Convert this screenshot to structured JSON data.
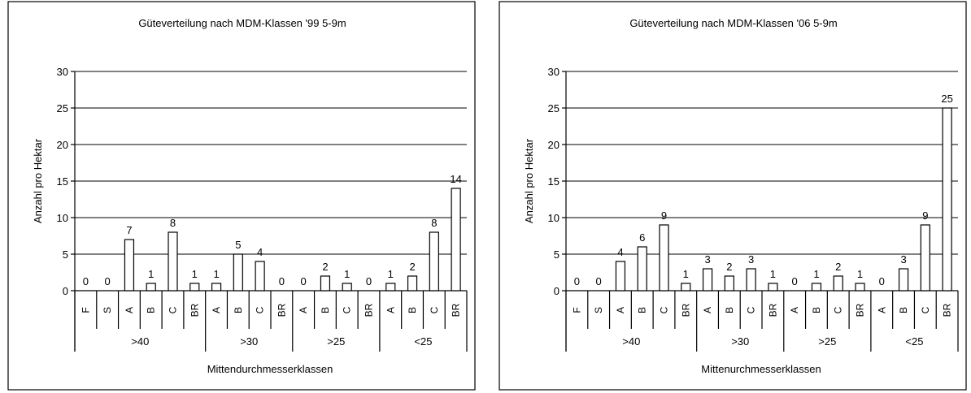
{
  "chart_data": [
    {
      "type": "bar",
      "title": "Güteverteilung nach MDM-Klassen '99 5-9m",
      "xlabel": "Mittendurchmesserklassen",
      "ylabel": "Anzahl pro Hektar",
      "ylim": [
        0,
        30
      ],
      "yticks": [
        "0",
        "5",
        "10",
        "15",
        "20",
        "25",
        "30"
      ],
      "grid": true,
      "categories": [
        "F",
        "S",
        "A",
        "B",
        "C",
        "BR",
        "A",
        "B",
        "C",
        "BR",
        "A",
        "B",
        "C",
        "BR",
        "A",
        "B",
        "C",
        "BR"
      ],
      "groups": [
        {
          "label": ">40",
          "count": 6
        },
        {
          "label": ">30",
          "count": 4
        },
        {
          "label": ">25",
          "count": 4
        },
        {
          "label": "<25",
          "count": 4
        }
      ],
      "values": [
        0,
        0,
        7,
        1,
        8,
        1,
        1,
        5,
        4,
        0,
        0,
        2,
        1,
        0,
        1,
        2,
        8,
        14
      ],
      "labels": [
        "0",
        "0",
        "7",
        "1",
        "8",
        "1",
        "1",
        "5",
        "4",
        "0",
        "0",
        "2",
        "1",
        "0",
        "1",
        "2",
        "8",
        "14"
      ]
    },
    {
      "type": "bar",
      "title": "Güteverteilung nach MDM-Klassen '06 5-9m",
      "xlabel": "Mittenurchmesserklassen",
      "ylabel": "Anzahl pro Hektar",
      "ylim": [
        0,
        30
      ],
      "yticks": [
        "0",
        "5",
        "10",
        "15",
        "20",
        "25",
        "30"
      ],
      "grid": true,
      "categories": [
        "F",
        "S",
        "A",
        "B",
        "C",
        "BR",
        "A",
        "B",
        "C",
        "BR",
        "A",
        "B",
        "C",
        "BR",
        "A",
        "B",
        "C",
        "BR"
      ],
      "groups": [
        {
          "label": ">40",
          "count": 6
        },
        {
          "label": ">30",
          "count": 4
        },
        {
          "label": ">25",
          "count": 4
        },
        {
          "label": "<25",
          "count": 4
        }
      ],
      "values": [
        0,
        0,
        4,
        6,
        9,
        1,
        3,
        2,
        3,
        1,
        0,
        1,
        2,
        1,
        0,
        3,
        9,
        25
      ],
      "labels": [
        "0",
        "0",
        "4",
        "6",
        "9",
        "1",
        "3",
        "2",
        "3",
        "1",
        "0",
        "1",
        "2",
        "1",
        "0",
        "3",
        "9",
        "25"
      ]
    }
  ]
}
